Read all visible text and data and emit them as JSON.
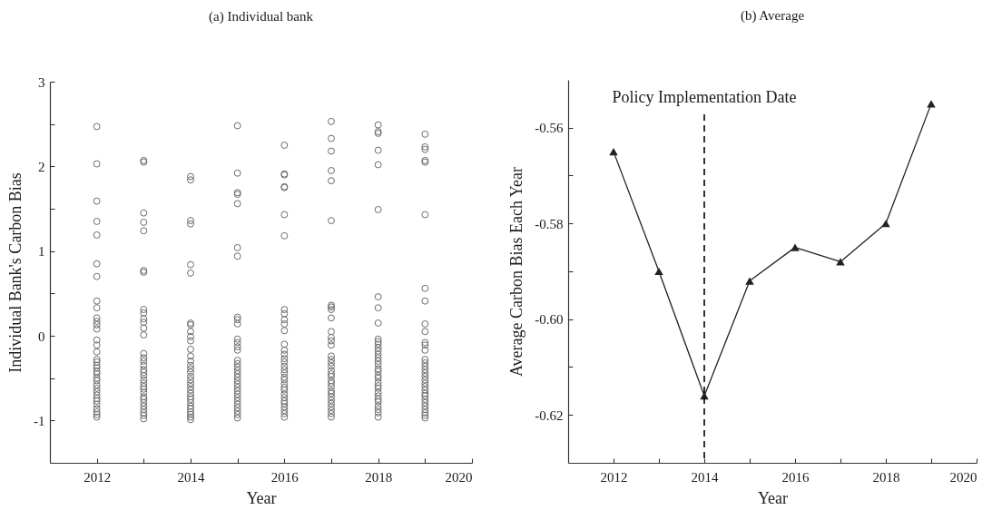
{
  "chart_data": [
    {
      "type": "scatter",
      "title": "(a) Individual bank",
      "xlabel": "Year",
      "ylabel": "Individual Bank's Carbon Bias",
      "marker": "circle",
      "color": "#6b6b6b",
      "xlim": [
        2011,
        2020
      ],
      "xticks": [
        2012,
        {
          "value": 2013,
          "label": null
        },
        2014,
        {
          "value": 2015,
          "label": null
        },
        2016,
        {
          "value": 2017,
          "label": null
        },
        2018,
        {
          "value": 2019,
          "label": null
        },
        2020
      ],
      "ylim": [
        -1.5,
        3
      ],
      "yticks": [
        -1,
        {
          "value": -0.5,
          "label": null
        },
        0,
        {
          "value": 0.5,
          "label": null
        },
        1,
        {
          "value": 1.5,
          "label": null
        },
        2,
        {
          "value": 2.5,
          "label": null
        },
        3
      ],
      "x": [
        2012,
        2012,
        2012,
        2012,
        2012,
        2012,
        2012,
        2012,
        2012,
        2012,
        2012,
        2012,
        2012,
        2012,
        2012,
        2012,
        2012,
        2012,
        2012,
        2012,
        2012,
        2012,
        2012,
        2012,
        2012,
        2012,
        2012,
        2012,
        2012,
        2012,
        2012,
        2012,
        2012,
        2012,
        2012,
        2013,
        2013,
        2013,
        2013,
        2013,
        2013,
        2013,
        2013,
        2013,
        2013,
        2013,
        2013,
        2013,
        2013,
        2013,
        2013,
        2013,
        2013,
        2013,
        2013,
        2013,
        2013,
        2013,
        2013,
        2013,
        2013,
        2013,
        2013,
        2013,
        2013,
        2013,
        2013,
        2013,
        2014,
        2014,
        2014,
        2014,
        2014,
        2014,
        2014,
        2014,
        2014,
        2014,
        2014,
        2014,
        2014,
        2014,
        2014,
        2014,
        2014,
        2014,
        2014,
        2014,
        2014,
        2014,
        2014,
        2014,
        2014,
        2014,
        2014,
        2014,
        2014,
        2014,
        2014,
        2014,
        2015,
        2015,
        2015,
        2015,
        2015,
        2015,
        2015,
        2015,
        2015,
        2015,
        2015,
        2015,
        2015,
        2015,
        2015,
        2015,
        2015,
        2015,
        2015,
        2015,
        2015,
        2015,
        2015,
        2015,
        2015,
        2015,
        2015,
        2015,
        2015,
        2015,
        2015,
        2015,
        2016,
        2016,
        2016,
        2016,
        2016,
        2016,
        2016,
        2016,
        2016,
        2016,
        2016,
        2016,
        2016,
        2016,
        2016,
        2016,
        2016,
        2016,
        2016,
        2016,
        2016,
        2016,
        2016,
        2016,
        2016,
        2016,
        2016,
        2016,
        2016,
        2016,
        2016,
        2016,
        2016,
        2017,
        2017,
        2017,
        2017,
        2017,
        2017,
        2017,
        2017,
        2017,
        2017,
        2017,
        2017,
        2017,
        2017,
        2017,
        2017,
        2017,
        2017,
        2017,
        2017,
        2017,
        2017,
        2017,
        2017,
        2017,
        2017,
        2017,
        2017,
        2017,
        2017,
        2017,
        2017,
        2017,
        2018,
        2018,
        2018,
        2018,
        2018,
        2018,
        2018,
        2018,
        2018,
        2018,
        2018,
        2018,
        2018,
        2018,
        2018,
        2018,
        2018,
        2018,
        2018,
        2018,
        2018,
        2018,
        2018,
        2018,
        2018,
        2018,
        2018,
        2018,
        2018,
        2018,
        2018,
        2018,
        2018,
        2019,
        2019,
        2019,
        2019,
        2019,
        2019,
        2019,
        2019,
        2019,
        2019,
        2019,
        2019,
        2019,
        2019,
        2019,
        2019,
        2019,
        2019,
        2019,
        2019,
        2019,
        2019,
        2019,
        2019,
        2019,
        2019,
        2019,
        2019,
        2019,
        2019,
        2019,
        2019
      ],
      "values": [
        2.47,
        2.03,
        1.59,
        1.35,
        1.19,
        0.85,
        0.7,
        0.41,
        0.33,
        0.21,
        0.17,
        0.13,
        0.08,
        -0.05,
        -0.11,
        -0.19,
        -0.28,
        -0.31,
        -0.35,
        -0.38,
        -0.42,
        -0.45,
        -0.5,
        -0.53,
        -0.58,
        -0.62,
        -0.66,
        -0.7,
        -0.74,
        -0.77,
        -0.81,
        -0.86,
        -0.9,
        -0.93,
        -0.96,
        2.07,
        2.05,
        1.45,
        1.34,
        1.24,
        0.77,
        0.75,
        0.31,
        0.27,
        0.2,
        0.16,
        0.09,
        0.01,
        -0.21,
        -0.26,
        -0.3,
        -0.35,
        -0.4,
        -0.43,
        -0.47,
        -0.52,
        -0.56,
        -0.6,
        -0.63,
        -0.67,
        -0.72,
        -0.75,
        -0.79,
        -0.83,
        -0.87,
        -0.91,
        -0.94,
        -0.98,
        1.88,
        1.84,
        1.36,
        1.32,
        0.84,
        0.74,
        0.15,
        0.13,
        0.05,
        -0.01,
        -0.06,
        -0.16,
        -0.24,
        -0.3,
        -0.35,
        -0.39,
        -0.43,
        -0.48,
        -0.52,
        -0.56,
        -0.6,
        -0.64,
        -0.68,
        -0.72,
        -0.75,
        -0.79,
        -0.83,
        -0.86,
        -0.9,
        -0.93,
        -0.96,
        -0.99,
        2.48,
        1.92,
        1.69,
        1.67,
        1.56,
        1.04,
        0.94,
        0.22,
        0.19,
        0.14,
        -0.04,
        -0.08,
        -0.13,
        -0.17,
        -0.29,
        -0.33,
        -0.37,
        -0.41,
        -0.45,
        -0.49,
        -0.53,
        -0.57,
        -0.61,
        -0.65,
        -0.69,
        -0.73,
        -0.77,
        -0.81,
        -0.85,
        -0.89,
        -0.93,
        -0.97,
        2.25,
        1.91,
        1.9,
        1.76,
        1.75,
        1.43,
        1.18,
        0.31,
        0.26,
        0.19,
        0.14,
        0.06,
        -0.1,
        -0.17,
        -0.22,
        -0.27,
        -0.31,
        -0.36,
        -0.4,
        -0.44,
        -0.49,
        -0.52,
        -0.57,
        -0.61,
        -0.64,
        -0.69,
        -0.73,
        -0.77,
        -0.8,
        -0.84,
        -0.88,
        -0.92,
        -0.96,
        2.53,
        2.33,
        2.18,
        1.95,
        1.83,
        1.36,
        0.36,
        0.34,
        0.31,
        0.21,
        0.05,
        -0.02,
        -0.06,
        -0.11,
        -0.24,
        -0.28,
        -0.32,
        -0.36,
        -0.41,
        -0.45,
        -0.48,
        -0.53,
        -0.56,
        -0.6,
        -0.65,
        -0.68,
        -0.72,
        -0.76,
        -0.8,
        -0.84,
        -0.88,
        -0.92,
        -0.96,
        2.49,
        2.41,
        2.39,
        2.19,
        2.02,
        1.49,
        0.46,
        0.33,
        0.15,
        -0.04,
        -0.07,
        -0.1,
        -0.14,
        -0.18,
        -0.22,
        -0.26,
        -0.3,
        -0.34,
        -0.39,
        -0.42,
        -0.47,
        -0.5,
        -0.55,
        -0.59,
        -0.62,
        -0.67,
        -0.71,
        -0.75,
        -0.78,
        -0.83,
        -0.87,
        -0.91,
        -0.96,
        2.38,
        2.23,
        2.2,
        2.07,
        2.05,
        1.43,
        0.56,
        0.41,
        0.14,
        0.05,
        -0.08,
        -0.11,
        -0.17,
        -0.28,
        -0.32,
        -0.36,
        -0.4,
        -0.44,
        -0.48,
        -0.52,
        -0.56,
        -0.6,
        -0.64,
        -0.68,
        -0.71,
        -0.75,
        -0.79,
        -0.83,
        -0.87,
        -0.91,
        -0.94,
        -0.97
      ]
    },
    {
      "type": "line",
      "title": "(b) Average",
      "xlabel": "Year",
      "ylabel": "Average Carbon Bias Each Year",
      "marker": "triangle",
      "color": "#222222",
      "x": [
        2012,
        2013,
        2014,
        2015,
        2016,
        2017,
        2018,
        2019
      ],
      "values": [
        -0.565,
        -0.59,
        -0.616,
        -0.592,
        -0.585,
        -0.588,
        -0.58,
        -0.555
      ],
      "xlim": [
        2011,
        2020
      ],
      "xticks": [
        2012,
        {
          "value": 2013,
          "label": null
        },
        2014,
        {
          "value": 2015,
          "label": null
        },
        2016,
        {
          "value": 2017,
          "label": null
        },
        2018,
        {
          "value": 2019,
          "label": null
        },
        2020
      ],
      "ylim": [
        -0.63,
        -0.55
      ],
      "yticks": [
        -0.62,
        {
          "value": -0.61,
          "label": null
        },
        {
          "value": -0.6,
          "label": "-0.60"
        },
        {
          "value": -0.59,
          "label": null
        },
        -0.58,
        {
          "value": -0.57,
          "label": null
        },
        -0.56
      ],
      "ref_lines": [
        {
          "axis": "x",
          "value": 2014,
          "label": "Policy Implementation Date",
          "line_style": "dashed",
          "color": "#000000"
        }
      ]
    }
  ]
}
